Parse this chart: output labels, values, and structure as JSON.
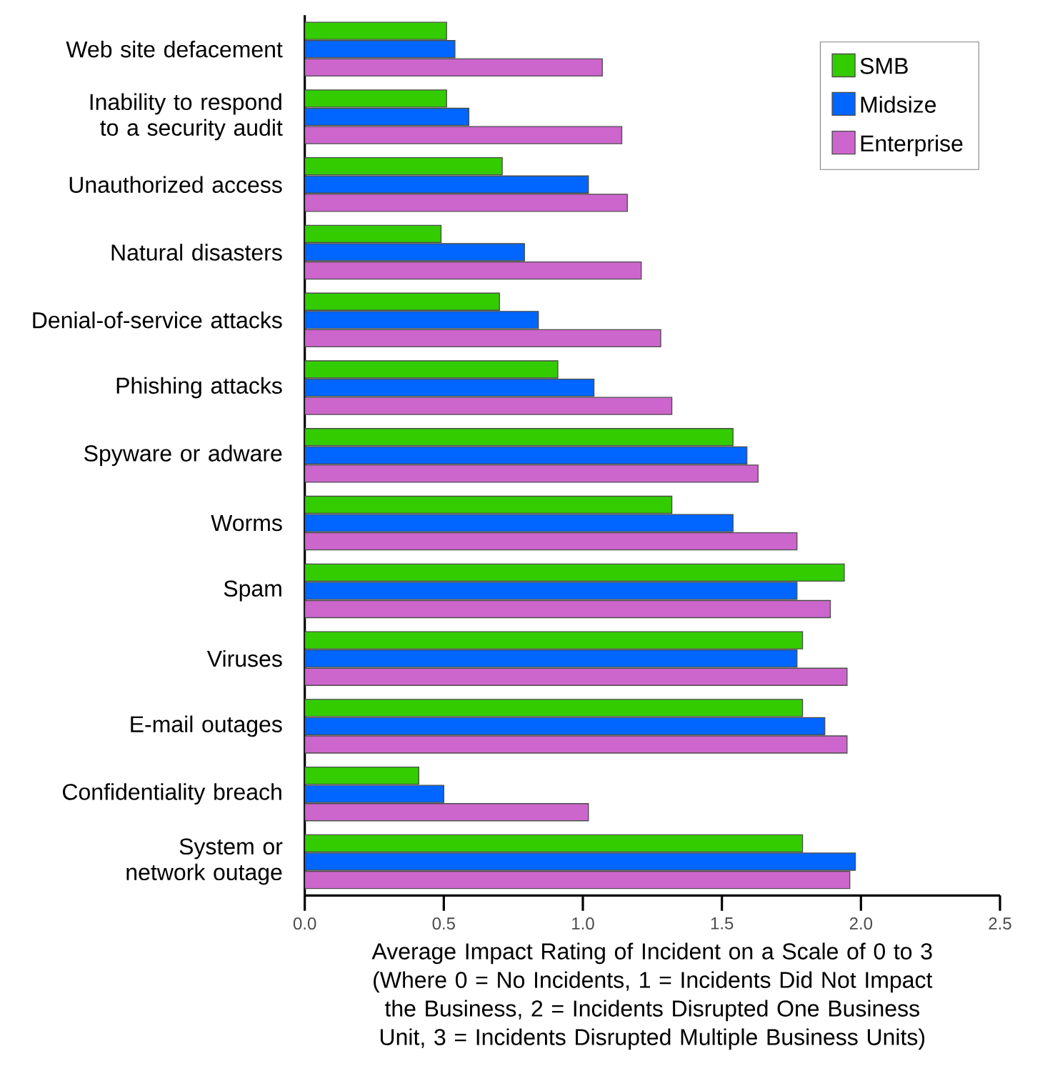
{
  "chart_data": {
    "type": "bar",
    "orientation": "horizontal",
    "xlabel": "Average Impact Rating of Incident on a Scale of 0 to 3 (Where 0 = No Incidents, 1 = Incidents Did Not Impact the Business, 2 = Incidents Disrupted One Business Unit, 3 = Incidents Disrupted Multiple Business Units)",
    "categories": [
      "Web site defacement",
      "Inability to respond to a security audit",
      "Unauthorized access",
      "Natural disasters",
      "Denial-of-service attacks",
      "Phishing attacks",
      "Spyware or adware",
      "Worms",
      "Spam",
      "Viruses",
      "E-mail outages",
      "Confidentiality breach",
      "System or network outage"
    ],
    "series": [
      {
        "name": "SMB",
        "color": "#33cc00",
        "values": [
          0.51,
          0.51,
          0.71,
          0.49,
          0.7,
          0.91,
          1.54,
          1.32,
          1.94,
          1.79,
          1.79,
          0.41,
          1.79
        ]
      },
      {
        "name": "Midsize",
        "color": "#0066ff",
        "values": [
          0.54,
          0.59,
          1.02,
          0.79,
          0.84,
          1.04,
          1.59,
          1.54,
          1.77,
          1.77,
          1.87,
          0.5,
          1.98
        ]
      },
      {
        "name": "Enterprise",
        "color": "#cc66cc",
        "values": [
          1.07,
          1.14,
          1.16,
          1.21,
          1.28,
          1.32,
          1.63,
          1.77,
          1.89,
          1.95,
          1.95,
          1.02,
          1.96
        ]
      }
    ],
    "xlim": [
      0,
      2.5
    ],
    "xticks": [
      {
        "value": 0,
        "label": "0.0"
      },
      {
        "value": 0.5,
        "label": "0.5"
      },
      {
        "value": 1,
        "label": "1.0"
      },
      {
        "value": 1.5,
        "label": "1.5"
      },
      {
        "value": 2,
        "label": "2.0"
      },
      {
        "value": 2.5,
        "label": "2.5"
      }
    ],
    "grid": false,
    "legend": "top right"
  }
}
